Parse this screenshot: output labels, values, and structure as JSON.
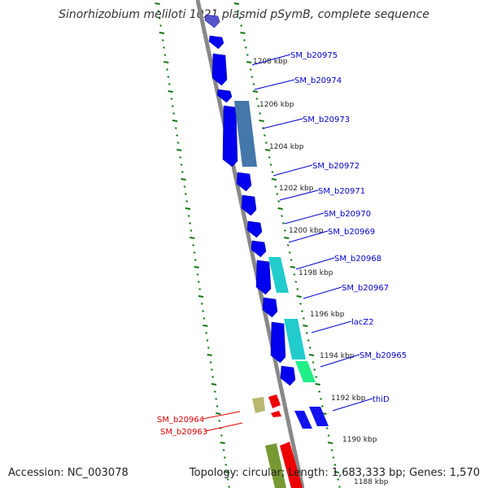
{
  "title": "Sinorhizobium meliloti 1021 plasmid pSymB, complete sequence",
  "footer": {
    "accession": "Accession: NC_003078",
    "summary": "Topology: circular; Length: 1,683,333 bp; Genes: 1,570"
  },
  "colors": {
    "backbone": "#888888",
    "tick": "#117711",
    "forward_gene": "#0000ee",
    "reverse_gene_label": "#ee0000",
    "label_blue": "#0000cc",
    "label_red": "#dd0000"
  },
  "kbp_ticks": [
    "1208 kbp",
    "1206 kbp",
    "1204 kbp",
    "1202 kbp",
    "1200 kbp",
    "1198 kbp",
    "1196 kbp",
    "1194 kbp",
    "1192 kbp",
    "1190 kbp",
    "1188 kbp"
  ],
  "gene_labels": [
    {
      "text": "SM_b20975",
      "color": "blue"
    },
    {
      "text": "SM_b20974",
      "color": "blue"
    },
    {
      "text": "SM_b20973",
      "color": "blue"
    },
    {
      "text": "SM_b20972",
      "color": "blue"
    },
    {
      "text": "SM_b20971",
      "color": "blue"
    },
    {
      "text": "SM_b20970",
      "color": "blue"
    },
    {
      "text": "SM_b20969",
      "color": "blue"
    },
    {
      "text": "SM_b20968",
      "color": "blue"
    },
    {
      "text": "SM_b20967",
      "color": "blue"
    },
    {
      "text": "lacZ2",
      "color": "blue"
    },
    {
      "text": "SM_b20965",
      "color": "blue"
    },
    {
      "text": "thiD",
      "color": "blue"
    },
    {
      "text": "SM_b20964",
      "color": "red"
    },
    {
      "text": "SM_b20963",
      "color": "red"
    }
  ]
}
